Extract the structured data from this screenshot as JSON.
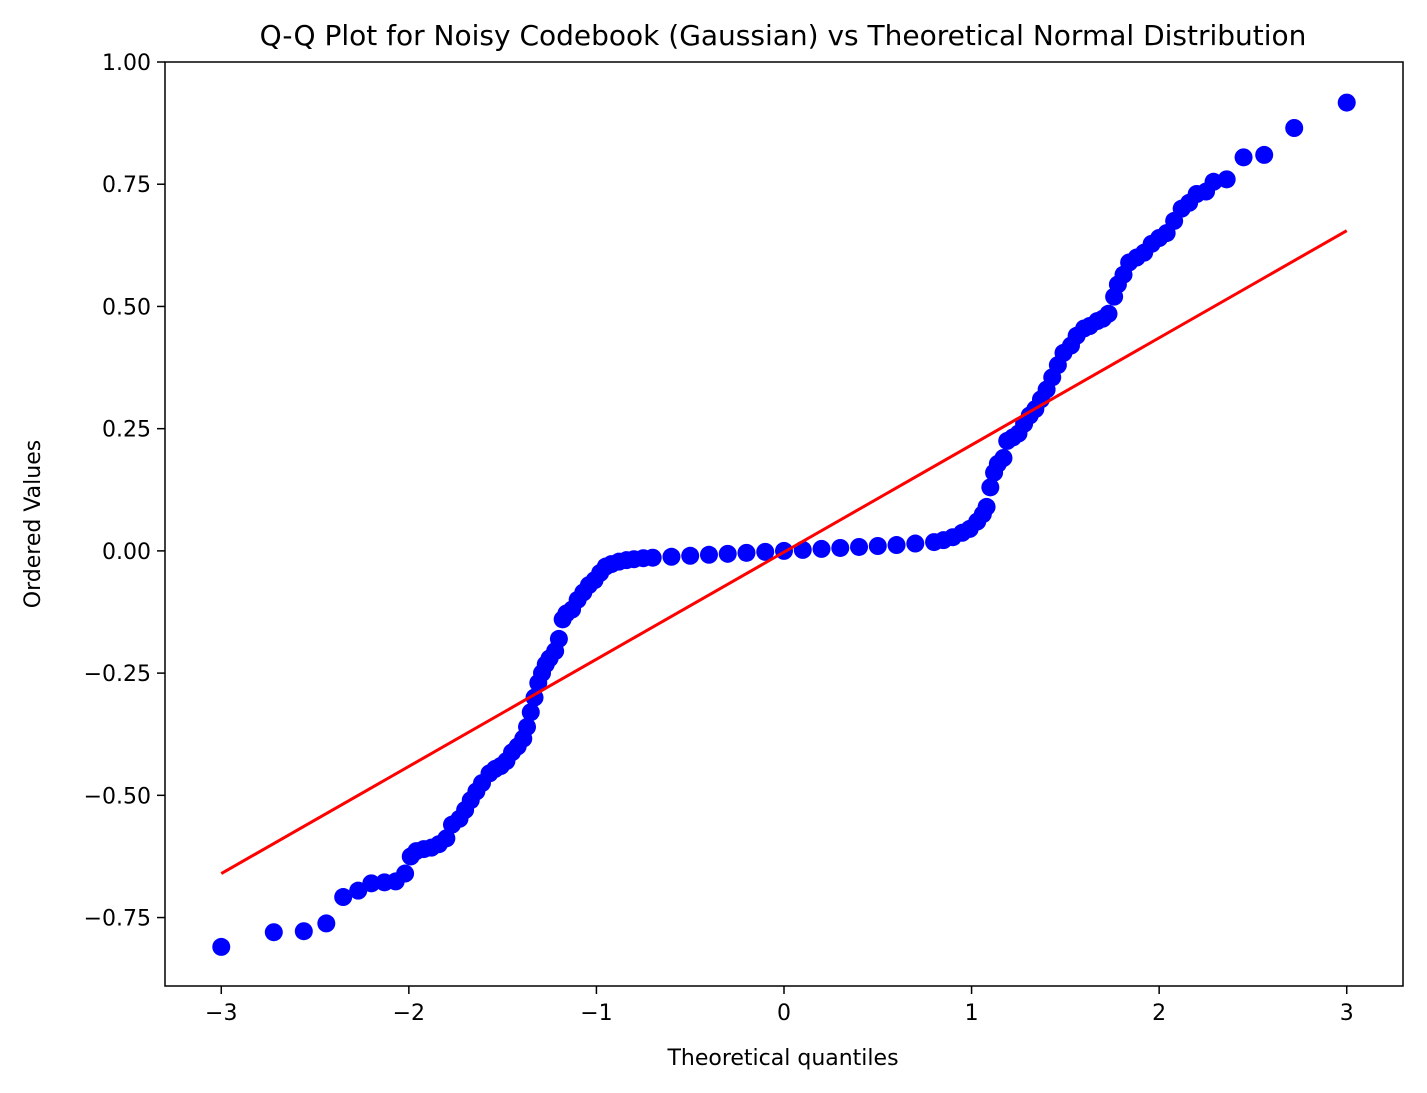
{
  "chart_data": {
    "type": "scatter",
    "title": "Q-Q Plot for Noisy Codebook (Gaussian) vs Theoretical Normal Distribution",
    "xlabel": "Theoretical quantiles",
    "ylabel": "Ordered Values",
    "xlim": [
      -3.3,
      3.3
    ],
    "ylim": [
      -0.89,
      1.0
    ],
    "xticks": [
      -3,
      -2,
      -1,
      0,
      1,
      2,
      3
    ],
    "xtick_labels": [
      "−3",
      "−2",
      "−1",
      "0",
      "1",
      "2",
      "3"
    ],
    "yticks": [
      -0.75,
      -0.5,
      -0.25,
      0.0,
      0.25,
      0.5,
      0.75,
      1.0
    ],
    "ytick_labels": [
      "−0.75",
      "−0.50",
      "−0.25",
      "0.00",
      "0.25",
      "0.50",
      "0.75",
      "1.00"
    ],
    "grid": false,
    "series": [
      {
        "marker_color": "#0000ff",
        "points": [
          [
            -3.0,
            -0.81
          ],
          [
            -2.72,
            -0.78
          ],
          [
            -2.56,
            -0.778
          ],
          [
            -2.44,
            -0.762
          ],
          [
            -2.35,
            -0.708
          ],
          [
            -2.27,
            -0.695
          ],
          [
            -2.2,
            -0.68
          ],
          [
            -2.13,
            -0.678
          ],
          [
            -2.07,
            -0.676
          ],
          [
            -2.02,
            -0.66
          ],
          [
            -1.99,
            -0.625
          ],
          [
            -1.96,
            -0.614
          ],
          [
            -1.92,
            -0.61
          ],
          [
            -1.88,
            -0.607
          ],
          [
            -1.84,
            -0.6
          ],
          [
            -1.8,
            -0.588
          ],
          [
            -1.77,
            -0.56
          ],
          [
            -1.73,
            -0.548
          ],
          [
            -1.7,
            -0.53
          ],
          [
            -1.67,
            -0.51
          ],
          [
            -1.64,
            -0.492
          ],
          [
            -1.61,
            -0.475
          ],
          [
            -1.57,
            -0.455
          ],
          [
            -1.54,
            -0.446
          ],
          [
            -1.51,
            -0.44
          ],
          [
            -1.48,
            -0.43
          ],
          [
            -1.45,
            -0.412
          ],
          [
            -1.42,
            -0.4
          ],
          [
            -1.39,
            -0.384
          ],
          [
            -1.37,
            -0.36
          ],
          [
            -1.35,
            -0.33
          ],
          [
            -1.33,
            -0.3
          ],
          [
            -1.31,
            -0.27
          ],
          [
            -1.29,
            -0.25
          ],
          [
            -1.27,
            -0.232
          ],
          [
            -1.25,
            -0.22
          ],
          [
            -1.22,
            -0.205
          ],
          [
            -1.2,
            -0.18
          ],
          [
            -1.18,
            -0.14
          ],
          [
            -1.16,
            -0.128
          ],
          [
            -1.13,
            -0.12
          ],
          [
            -1.1,
            -0.1
          ],
          [
            -1.07,
            -0.085
          ],
          [
            -1.04,
            -0.07
          ],
          [
            -1.01,
            -0.06
          ],
          [
            -0.98,
            -0.045
          ],
          [
            -0.95,
            -0.032
          ],
          [
            -0.92,
            -0.027
          ],
          [
            -0.88,
            -0.022
          ],
          [
            -0.84,
            -0.019
          ],
          [
            -0.8,
            -0.017
          ],
          [
            -0.75,
            -0.015
          ],
          [
            -0.7,
            -0.014
          ],
          [
            -0.6,
            -0.012
          ],
          [
            -0.5,
            -0.01
          ],
          [
            -0.4,
            -0.008
          ],
          [
            -0.3,
            -0.006
          ],
          [
            -0.2,
            -0.004
          ],
          [
            -0.1,
            -0.002
          ],
          [
            0.0,
            0.0
          ],
          [
            0.1,
            0.002
          ],
          [
            0.2,
            0.004
          ],
          [
            0.3,
            0.006
          ],
          [
            0.4,
            0.008
          ],
          [
            0.5,
            0.01
          ],
          [
            0.6,
            0.012
          ],
          [
            0.7,
            0.015
          ],
          [
            0.8,
            0.018
          ],
          [
            0.85,
            0.022
          ],
          [
            0.9,
            0.028
          ],
          [
            0.95,
            0.037
          ],
          [
            0.99,
            0.045
          ],
          [
            1.03,
            0.06
          ],
          [
            1.06,
            0.075
          ],
          [
            1.08,
            0.09
          ],
          [
            1.1,
            0.13
          ],
          [
            1.12,
            0.16
          ],
          [
            1.14,
            0.178
          ],
          [
            1.17,
            0.19
          ],
          [
            1.19,
            0.225
          ],
          [
            1.22,
            0.232
          ],
          [
            1.25,
            0.24
          ],
          [
            1.28,
            0.26
          ],
          [
            1.31,
            0.277
          ],
          [
            1.34,
            0.29
          ],
          [
            1.37,
            0.31
          ],
          [
            1.4,
            0.33
          ],
          [
            1.43,
            0.355
          ],
          [
            1.46,
            0.38
          ],
          [
            1.49,
            0.405
          ],
          [
            1.53,
            0.42
          ],
          [
            1.56,
            0.44
          ],
          [
            1.6,
            0.455
          ],
          [
            1.63,
            0.46
          ],
          [
            1.67,
            0.47
          ],
          [
            1.7,
            0.475
          ],
          [
            1.73,
            0.485
          ],
          [
            1.76,
            0.52
          ],
          [
            1.78,
            0.545
          ],
          [
            1.81,
            0.565
          ],
          [
            1.84,
            0.59
          ],
          [
            1.88,
            0.6
          ],
          [
            1.92,
            0.61
          ],
          [
            1.96,
            0.628
          ],
          [
            2.0,
            0.64
          ],
          [
            2.04,
            0.65
          ],
          [
            2.08,
            0.675
          ],
          [
            2.12,
            0.7
          ],
          [
            2.16,
            0.712
          ],
          [
            2.2,
            0.73
          ],
          [
            2.25,
            0.735
          ],
          [
            2.29,
            0.755
          ],
          [
            2.36,
            0.76
          ],
          [
            2.45,
            0.805
          ],
          [
            2.56,
            0.81
          ],
          [
            2.72,
            0.865
          ],
          [
            3.0,
            0.917
          ]
        ]
      },
      {
        "line_color": "#ff0000",
        "line": [
          [
            -3.0,
            -0.66
          ],
          [
            3.0,
            0.655
          ]
        ]
      }
    ]
  }
}
